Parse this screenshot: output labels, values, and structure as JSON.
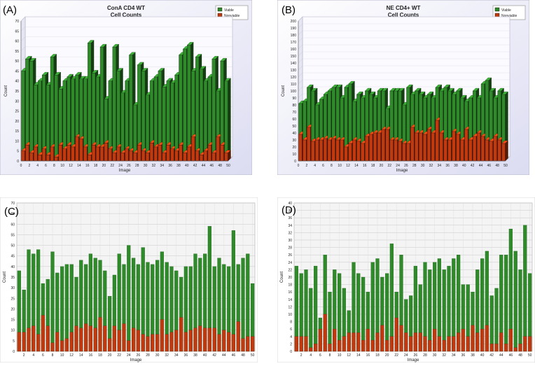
{
  "colors": {
    "viable": "#2f8a2a",
    "nonviable": "#c0390f",
    "frame_blue": "#dcdcf2",
    "frame_white": "#ffffff",
    "plot_bg": "#f2f2fa",
    "grid": "#c8c8c8"
  },
  "chart_data": [
    {
      "panel": "(A)",
      "type": "bar",
      "style": "3d-overlapped",
      "title": "ConA CD4 WT",
      "subtitle": "Cell Counts",
      "xlabel": "Image",
      "ylabel": "Count",
      "ylim": [
        0,
        70
      ],
      "yticks": [
        0,
        5,
        10,
        15,
        20,
        25,
        30,
        35,
        40,
        45,
        50,
        55,
        60,
        65,
        70
      ],
      "xticks": [
        0,
        2,
        4,
        6,
        8,
        10,
        12,
        14,
        16,
        18,
        20,
        22,
        24,
        26,
        28,
        30,
        32,
        34,
        36,
        38,
        40,
        42,
        44,
        46,
        48,
        50
      ],
      "legend": [
        "Viable",
        "Nonviable"
      ],
      "legend_position": "top-right",
      "background": "blue-gradient",
      "x": [
        1,
        2,
        3,
        4,
        5,
        6,
        7,
        8,
        9,
        10,
        11,
        12,
        13,
        14,
        15,
        16,
        17,
        18,
        19,
        20,
        21,
        22,
        23,
        24,
        25,
        26,
        27,
        28,
        29,
        30,
        31,
        32,
        33,
        34,
        35,
        36,
        37,
        38,
        39,
        40,
        41,
        42,
        43,
        44,
        45,
        46,
        47,
        48,
        49,
        50
      ],
      "series": [
        {
          "name": "Viable",
          "values": [
            45,
            51,
            50,
            38,
            40,
            43,
            38,
            52,
            43,
            36,
            40,
            42,
            41,
            43,
            41,
            41,
            59,
            44,
            42,
            57,
            31,
            40,
            57,
            45,
            34,
            40,
            53,
            28,
            48,
            45,
            33,
            40,
            42,
            45,
            37,
            40,
            39,
            43,
            53,
            56,
            58,
            45,
            52,
            46,
            40,
            42,
            51,
            35,
            50,
            40
          ]
        },
        {
          "name": "Nonviable",
          "values": [
            5,
            8,
            4,
            7,
            3,
            6,
            3,
            7,
            2,
            8,
            6,
            8,
            7,
            12,
            11,
            7,
            3,
            8,
            7,
            7,
            9,
            6,
            4,
            7,
            4,
            6,
            5,
            4,
            8,
            5,
            4,
            9,
            7,
            8,
            4,
            8,
            6,
            5,
            8,
            4,
            7,
            12,
            5,
            3,
            5,
            8,
            4,
            12,
            8,
            4
          ]
        }
      ]
    },
    {
      "panel": "(B)",
      "type": "bar",
      "style": "3d-overlapped",
      "title": "NE CD4+ WT",
      "subtitle": "Cell Counts",
      "xlabel": "Image",
      "ylabel": "Count",
      "ylim": [
        0,
        200
      ],
      "yticks": [
        0,
        10,
        20,
        30,
        40,
        50,
        60,
        70,
        80,
        90,
        100,
        110,
        120,
        130,
        140,
        150,
        160,
        170,
        180,
        190,
        200
      ],
      "xticks": [
        0,
        2,
        4,
        6,
        8,
        10,
        12,
        14,
        16,
        18,
        20,
        22,
        24,
        26,
        28,
        30,
        32,
        34,
        36,
        38,
        40,
        42,
        44,
        46,
        48,
        50
      ],
      "legend": [
        "Viable",
        "Nonviable"
      ],
      "legend_position": "top-right",
      "background": "blue-gradient",
      "x": [
        1,
        2,
        3,
        4,
        5,
        6,
        7,
        8,
        9,
        10,
        11,
        12,
        13,
        14,
        15,
        16,
        17,
        18,
        19,
        20,
        21,
        22,
        23,
        24,
        25,
        26,
        27,
        28,
        29,
        30,
        31,
        32,
        33,
        34,
        35,
        36,
        37,
        38,
        39,
        40,
        41,
        42,
        43,
        44,
        45,
        46,
        47,
        48,
        49,
        50
      ],
      "series": [
        {
          "name": "Viable",
          "values": [
            82,
            85,
            105,
            100,
            80,
            88,
            95,
            100,
            105,
            105,
            90,
            105,
            110,
            85,
            95,
            90,
            100,
            95,
            90,
            100,
            100,
            75,
            100,
            100,
            100,
            80,
            105,
            95,
            100,
            95,
            90,
            95,
            90,
            105,
            100,
            105,
            100,
            95,
            100,
            90,
            85,
            90,
            100,
            90,
            110,
            115,
            100,
            90,
            100,
            95
          ]
        },
        {
          "name": "Nonviable",
          "values": [
            38,
            30,
            48,
            28,
            30,
            30,
            32,
            30,
            32,
            30,
            30,
            20,
            25,
            30,
            28,
            25,
            35,
            38,
            40,
            40,
            45,
            45,
            30,
            30,
            28,
            25,
            25,
            48,
            40,
            40,
            38,
            45,
            40,
            58,
            40,
            30,
            30,
            42,
            38,
            30,
            45,
            30,
            35,
            40,
            35,
            30,
            28,
            35,
            30,
            25
          ]
        }
      ]
    },
    {
      "panel": "(C)",
      "type": "bar",
      "style": "overlapped",
      "title": "",
      "xlabel": "Image",
      "ylabel": "Count",
      "ylim": [
        0,
        70
      ],
      "yticks": [
        0,
        5,
        10,
        15,
        20,
        25,
        30,
        35,
        40,
        45,
        50,
        55,
        60,
        65,
        70
      ],
      "xticks": [
        2,
        4,
        6,
        8,
        10,
        12,
        14,
        16,
        18,
        20,
        22,
        24,
        26,
        28,
        30,
        32,
        34,
        36,
        38,
        40,
        42,
        44,
        46,
        48,
        50
      ],
      "legend": [],
      "background": "light-gray-grid",
      "x": [
        1,
        2,
        3,
        4,
        5,
        6,
        7,
        8,
        9,
        10,
        11,
        12,
        13,
        14,
        15,
        16,
        17,
        18,
        19,
        20,
        21,
        22,
        23,
        24,
        25,
        26,
        27,
        28,
        29,
        30,
        31,
        32,
        33,
        34,
        35,
        36,
        37,
        38,
        39,
        40,
        41,
        42,
        43,
        44,
        45,
        46,
        47,
        48,
        49,
        50
      ],
      "series": [
        {
          "name": "Viable",
          "values": [
            38,
            29,
            48,
            46,
            48,
            32,
            34,
            47,
            37,
            40,
            41,
            41,
            35,
            43,
            41,
            46,
            44,
            43,
            38,
            26,
            36,
            46,
            41,
            50,
            44,
            41,
            49,
            42,
            41,
            43,
            47,
            42,
            40,
            38,
            35,
            40,
            40,
            46,
            44,
            46,
            59,
            40,
            44,
            41,
            40,
            57,
            41,
            44,
            46,
            32
          ]
        },
        {
          "name": "Nonviable",
          "values": [
            9,
            9,
            11,
            12,
            8,
            17,
            12,
            4,
            9,
            5,
            6,
            9,
            12,
            11,
            13,
            12,
            11,
            16,
            12,
            6,
            12,
            10,
            13,
            5,
            11,
            10,
            8,
            7,
            8,
            8,
            15,
            8,
            9,
            10,
            16,
            9,
            10,
            11,
            12,
            11,
            11,
            11,
            8,
            10,
            9,
            8,
            14,
            6,
            7,
            7
          ]
        }
      ]
    },
    {
      "panel": "(D)",
      "type": "bar",
      "style": "overlapped",
      "title": "",
      "xlabel": "Image",
      "ylabel": "Count",
      "ylim": [
        0,
        40
      ],
      "yticks": [
        0,
        2,
        4,
        6,
        8,
        10,
        12,
        14,
        16,
        18,
        20,
        22,
        24,
        26,
        28,
        30,
        32,
        34,
        36,
        38,
        40
      ],
      "xticks": [
        2,
        4,
        6,
        8,
        10,
        12,
        14,
        16,
        18,
        20,
        22,
        24,
        26,
        28,
        30,
        32,
        34,
        36,
        38,
        40,
        42,
        44,
        46,
        48,
        50
      ],
      "legend": [],
      "background": "light-gray-grid",
      "x": [
        1,
        2,
        3,
        4,
        5,
        6,
        7,
        8,
        9,
        10,
        11,
        12,
        13,
        14,
        15,
        16,
        17,
        18,
        19,
        20,
        21,
        22,
        23,
        24,
        25,
        26,
        27,
        28,
        29,
        30,
        31,
        32,
        33,
        34,
        35,
        36,
        37,
        38,
        39,
        40,
        41,
        42,
        43,
        44,
        45,
        46,
        47,
        48,
        49,
        50
      ],
      "series": [
        {
          "name": "Viable",
          "values": [
            23,
            21,
            22,
            17,
            23,
            9,
            26,
            16,
            22,
            21,
            17,
            11,
            24,
            21,
            20,
            16,
            24,
            25,
            20,
            21,
            29,
            16,
            26,
            14,
            15,
            23,
            18,
            24,
            22,
            24,
            25,
            22,
            23,
            25,
            26,
            18,
            18,
            16,
            22,
            25,
            27,
            15,
            17,
            26,
            26,
            33,
            27,
            22,
            34,
            21
          ]
        },
        {
          "name": "Nonviable",
          "values": [
            4,
            4,
            4,
            1,
            2,
            6,
            10,
            2,
            6,
            3,
            4,
            5,
            5,
            5,
            3,
            6,
            3,
            5,
            7,
            3,
            4,
            9,
            7,
            5,
            4,
            5,
            5,
            4,
            3,
            6,
            4,
            3,
            4,
            4,
            5,
            6,
            4,
            7,
            5,
            6,
            7,
            2,
            2,
            5,
            2,
            6,
            1,
            2,
            4,
            4
          ]
        }
      ]
    }
  ]
}
